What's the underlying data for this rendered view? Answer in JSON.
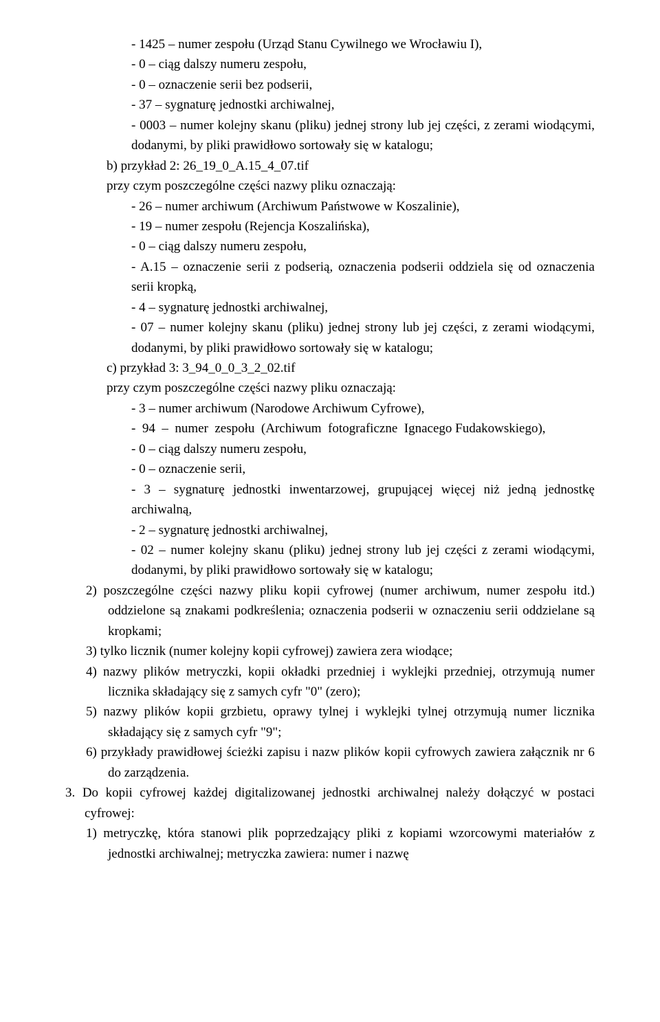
{
  "lines": {
    "a1": "- 1425 – numer zespołu (Urząd Stanu Cywilnego we Wrocławiu I),",
    "a2": "- 0 – ciąg dalszy numeru zespołu,",
    "a3": "- 0 – oznaczenie serii bez podserii,",
    "a4": "- 37 – sygnaturę jednostki archiwalnej,",
    "a5": "- 0003 – numer kolejny skanu (pliku) jednej strony lub jej części, z zerami wiodącymi, dodanymi, by pliki prawidłowo sortowały się w katalogu;",
    "b_head": "b) przykład 2: 26_19_0_A.15_4_07.tif",
    "b_sub": "przy czym poszczególne części nazwy pliku oznaczają:",
    "b1": "- 26 – numer archiwum (Archiwum Państwowe w Koszalinie),",
    "b2": "- 19 – numer zespołu (Rejencja Koszalińska),",
    "b3": "- 0 – ciąg dalszy numeru zespołu,",
    "b4": "- A.15 – oznaczenie serii z podserią, oznaczenia podserii oddziela się od oznaczenia serii kropką,",
    "b5": "- 4 – sygnaturę jednostki archiwalnej,",
    "b6": "- 07 – numer kolejny skanu (pliku) jednej strony lub jej części, z zerami wiodącymi, dodanymi, by pliki prawidłowo sortowały się w katalogu;",
    "c_head": "c) przykład 3: 3_94_0_0_3_2_02.tif",
    "c_sub": "przy czym poszczególne części nazwy pliku oznaczają:",
    "c1": "- 3 – numer archiwum (Narodowe Archiwum Cyfrowe),",
    "c2": "-  94  –  numer  zespołu  (Archiwum  fotograficzne  Ignacego Fudakowskiego),",
    "c3": "- 0 – ciąg dalszy numeru zespołu,",
    "c4": "- 0 – oznaczenie serii,",
    "c5": "- 3 – sygnaturę jednostki inwentarzowej, grupującej więcej niż jedną jednostkę archiwalną,",
    "c6": "- 2 – sygnaturę jednostki archiwalnej,",
    "c7": "- 02 – numer kolejny skanu (pliku) jednej strony lub jej części z zerami wiodącymi, dodanymi, by pliki prawidłowo sortowały się w katalogu;",
    "n2": "2) poszczególne części nazwy pliku kopii cyfrowej (numer archiwum, numer zespołu itd.) oddzielone są znakami podkreślenia; oznaczenia podserii w oznaczeniu serii oddzielane są kropkami;",
    "n3": "3) tylko licznik (numer kolejny kopii cyfrowej) zawiera zera wiodące;",
    "n4": "4) nazwy plików metryczki, kopii okładki przedniej i wyklejki przedniej, otrzymują numer licznika składający się z samych cyfr \"0\" (zero);",
    "n5": "5) nazwy plików kopii grzbietu, oprawy tylnej i wyklejki tylnej otrzymują numer licznika składający się z samych cyfr \"9\";",
    "n6": "6) przykłady prawidłowej ścieżki zapisu i nazw plików kopii cyfrowych zawiera załącznik nr 6 do zarządzenia.",
    "p3": "3. Do kopii cyfrowej każdej digitalizowanej jednostki archiwalnej należy dołączyć w postaci cyfrowej:",
    "p3_1": "1) metryczkę, która stanowi plik poprzedzający pliki z kopiami wzorcowymi materiałów z jednostki archiwalnej; metryczka zawiera: numer i nazwę"
  },
  "colors": {
    "text": "#000000",
    "background": "#ffffff"
  },
  "typography": {
    "font_family": "Palatino Linotype / Book Antiqua",
    "font_size_pt": 14,
    "line_height": 1.55
  }
}
